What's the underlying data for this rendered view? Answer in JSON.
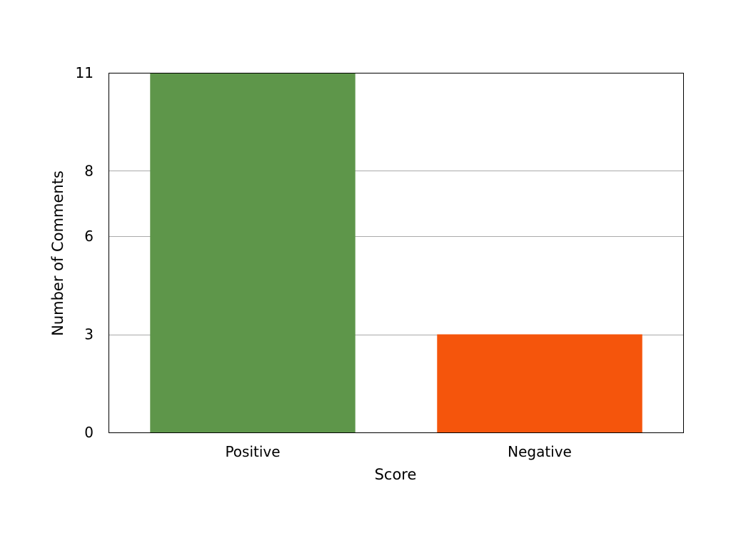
{
  "chart_data": {
    "type": "bar",
    "categories": [
      "Positive",
      "Negative"
    ],
    "values": [
      11,
      3
    ],
    "colors": [
      "#5e964a",
      "#f5550c"
    ],
    "xlabel": "Score",
    "ylabel": "Number of Comments",
    "ylim": [
      0,
      11
    ],
    "yticks": [
      0,
      3,
      6,
      8,
      11
    ],
    "ytick_labels": [
      "0",
      "3",
      "6",
      "8",
      "11"
    ],
    "grid": "horizontal",
    "legend": "none"
  }
}
